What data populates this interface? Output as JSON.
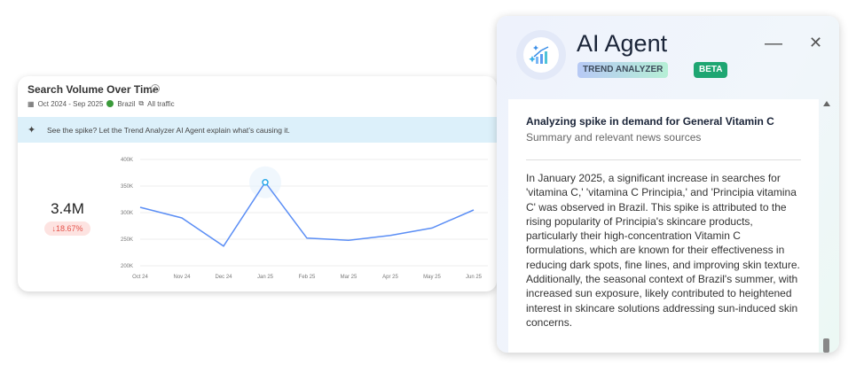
{
  "card": {
    "title": "Search Volume Over Time",
    "info_icon": "i",
    "date_range": "Oct 2024 - Sep 2025",
    "country": "Brazil",
    "traffic": "All traffic",
    "banner": "See the spike? Let the Trend Analyzer AI Agent explain what’s causing it.",
    "total": "3.4M",
    "change": "↓18.67%",
    "change_color": "#e5534b"
  },
  "chart_data": {
    "type": "line",
    "categories": [
      "Oct 24",
      "Nov 24",
      "Dec 24",
      "Jan 25",
      "Feb 25",
      "Mar 25",
      "Apr 25",
      "May 25",
      "Jun 25"
    ],
    "values": [
      310000,
      290000,
      237000,
      357000,
      252000,
      248000,
      257000,
      271000,
      305000
    ],
    "y_ticks": [
      "400K",
      "350K",
      "300K",
      "250K",
      "200K"
    ],
    "ylim": [
      200000,
      400000
    ],
    "highlight": "Jan 25",
    "line_color": "#5b8ef5"
  },
  "panel": {
    "title": "AI Agent",
    "tag": "TREND ANALYZER",
    "badge": "BETA",
    "minimize": "—",
    "close": "✕",
    "heading": "Analyzing spike in demand for General Vitamin C",
    "subheading": "Summary and relevant news sources",
    "body": "In January 2025, a significant increase in searches for 'vitamina C,' 'vitamina C Principia,' and 'Principia vitamina C' was observed in Brazil. This spike is attributed to the rising popularity of Principia's skincare products, particularly their high-concentration Vitamin C formulations, which are known for their effectiveness in reducing dark spots, fine lines, and improving skin texture. Additionally, the seasonal context of Brazil's summer, with increased sun exposure, likely contributed to heightened interest in skincare solutions addressing sun-induced skin concerns."
  }
}
